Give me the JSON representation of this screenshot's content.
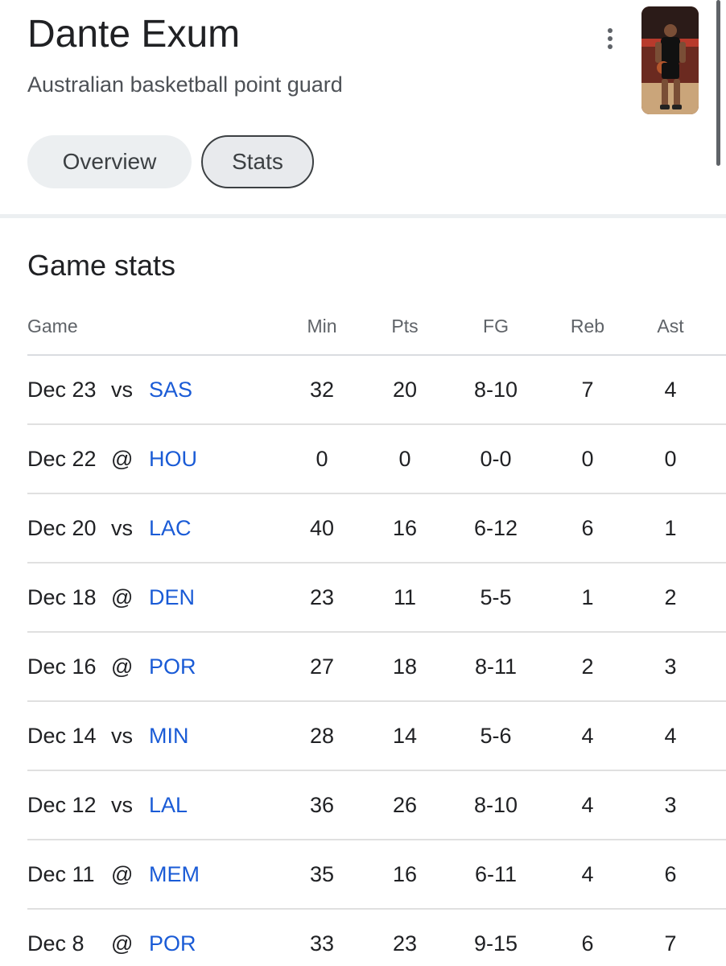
{
  "player": {
    "name": "Dante Exum",
    "description": "Australian basketball point guard"
  },
  "tabs": [
    {
      "label": "Overview",
      "selected": false
    },
    {
      "label": "Stats",
      "selected": true
    }
  ],
  "section_title": "Game stats",
  "table": {
    "headers": {
      "game": "Game",
      "min": "Min",
      "pts": "Pts",
      "fg": "FG",
      "reb": "Reb",
      "ast": "Ast"
    },
    "rows": [
      {
        "date": "Dec 23",
        "loc": "vs",
        "team": "SAS",
        "min": "32",
        "pts": "20",
        "fg": "8-10",
        "reb": "7",
        "ast": "4"
      },
      {
        "date": "Dec 22",
        "loc": "@",
        "team": "HOU",
        "min": "0",
        "pts": "0",
        "fg": "0-0",
        "reb": "0",
        "ast": "0"
      },
      {
        "date": "Dec 20",
        "loc": "vs",
        "team": "LAC",
        "min": "40",
        "pts": "16",
        "fg": "6-12",
        "reb": "6",
        "ast": "1"
      },
      {
        "date": "Dec 18",
        "loc": "@",
        "team": "DEN",
        "min": "23",
        "pts": "11",
        "fg": "5-5",
        "reb": "1",
        "ast": "2"
      },
      {
        "date": "Dec 16",
        "loc": "@",
        "team": "POR",
        "min": "27",
        "pts": "18",
        "fg": "8-11",
        "reb": "2",
        "ast": "3"
      },
      {
        "date": "Dec 14",
        "loc": "vs",
        "team": "MIN",
        "min": "28",
        "pts": "14",
        "fg": "5-6",
        "reb": "4",
        "ast": "4"
      },
      {
        "date": "Dec 12",
        "loc": "vs",
        "team": "LAL",
        "min": "36",
        "pts": "26",
        "fg": "8-10",
        "reb": "4",
        "ast": "3"
      },
      {
        "date": "Dec 11",
        "loc": "@",
        "team": "MEM",
        "min": "35",
        "pts": "16",
        "fg": "6-11",
        "reb": "4",
        "ast": "6"
      },
      {
        "date": "Dec 8",
        "loc": "@",
        "team": "POR",
        "min": "33",
        "pts": "23",
        "fg": "9-15",
        "reb": "6",
        "ast": "7"
      }
    ]
  },
  "colors": {
    "link": "#1a5bd6",
    "chip_bg": "#eceff1",
    "text": "#202124",
    "muted": "#5f6368"
  },
  "icons": {
    "menu": "more-vert-icon"
  }
}
